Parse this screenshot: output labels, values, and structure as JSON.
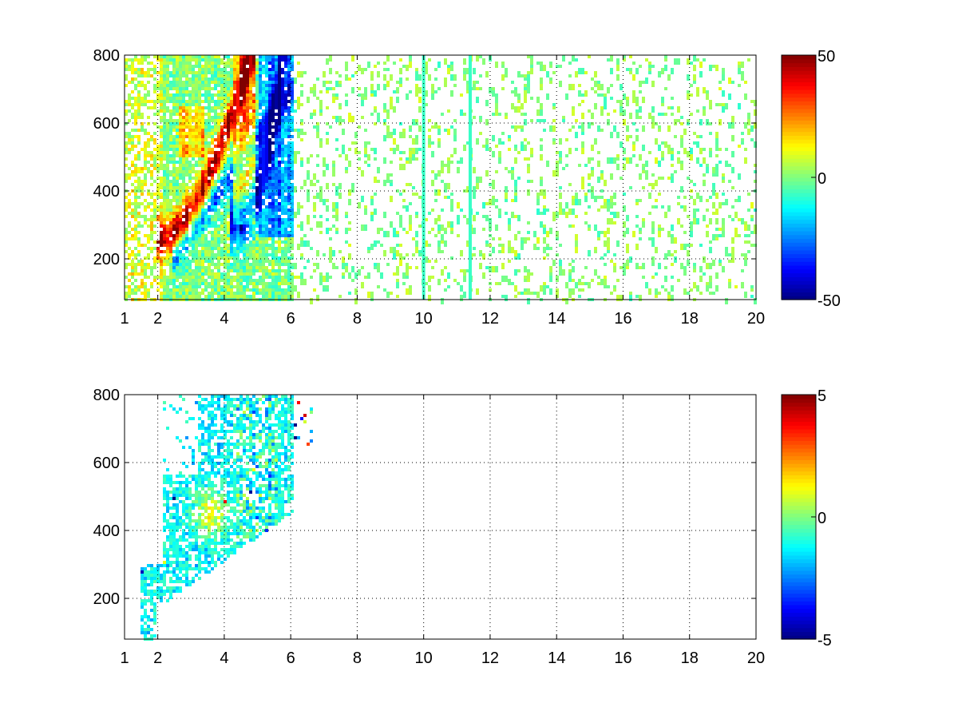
{
  "chart_data": [
    {
      "type": "heatmap",
      "title": "",
      "xlabel": "",
      "ylabel": "",
      "xlim": [
        1,
        20
      ],
      "ylim": [
        80,
        800
      ],
      "x_ticks": [
        "1",
        "2",
        "4",
        "6",
        "8",
        "10",
        "12",
        "14",
        "16",
        "18",
        "20"
      ],
      "y_ticks": [
        "200",
        "400",
        "600",
        "800"
      ],
      "grid": true,
      "colormap": "jet",
      "clim": [
        -50,
        50
      ],
      "colorbar_ticks": [
        "-50",
        "0",
        "50"
      ],
      "features": [
        {
          "description": "dense band of values from x 1 to 6, strongest between x 2.5 and 6",
          "value_range": [
            -50,
            50
          ]
        },
        {
          "description": "curved positive ridge rising from y 260 at x 2.2 to y 800 near x 4.7",
          "approx_value": 40
        },
        {
          "description": "curved negative ridge rising from y 310 at x 4.5 to y 800 near x 5.7",
          "approx_value": -35
        },
        {
          "description": "sparse scattered near-zero values from x 6 to 20",
          "value_range": [
            -10,
            10
          ]
        },
        {
          "description": "continuous vertical streaks at x 10 and x 11.4",
          "approx_value": -5
        }
      ]
    },
    {
      "type": "heatmap",
      "title": "",
      "xlabel": "",
      "ylabel": "",
      "xlim": [
        1,
        20
      ],
      "ylim": [
        80,
        800
      ],
      "x_ticks": [
        "1",
        "2",
        "4",
        "6",
        "8",
        "10",
        "12",
        "14",
        "16",
        "18",
        "20"
      ],
      "y_ticks": [
        "200",
        "400",
        "600",
        "800"
      ],
      "grid": true,
      "colormap": "jet",
      "clim": [
        -5,
        5
      ],
      "colorbar_ticks": [
        "-5",
        "0",
        "5"
      ],
      "features": [
        {
          "description": "values confined between x 1.5 and 6.6, mostly slightly negative",
          "value_range": [
            -2,
            0.5
          ]
        },
        {
          "description": "positive patch near x 3.6, y 450",
          "approx_value": 1.5
        },
        {
          "description": "band along x 4.5 to 5.5, y 400 to 800 with mixed near-zero values",
          "value_range": [
            -1.5,
            1.5
          ]
        },
        {
          "description": "isolated strong points near x 6.5, y 680 to 770",
          "value_range": [
            -5,
            5
          ]
        }
      ]
    }
  ]
}
